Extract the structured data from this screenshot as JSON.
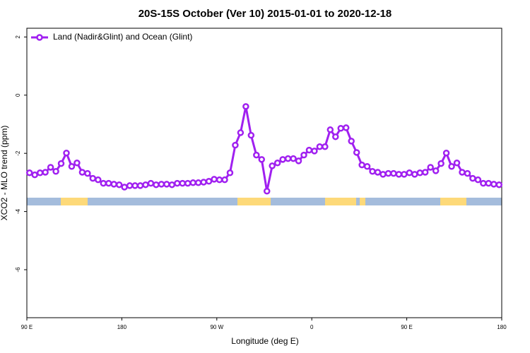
{
  "chart_data": {
    "type": "line",
    "title": "20S-15S October (Ver 10)   2015-01-01 to 2020-12-18",
    "x_label": "Longitude (deg E)",
    "y_label": "XCO2 - MLO trend (ppm)",
    "xlim": [
      90,
      540
    ],
    "ylim": [
      -7.65,
      2.3
    ],
    "xticks": [
      {
        "value": 90,
        "label": "90 E"
      },
      {
        "value": 180,
        "label": "180"
      },
      {
        "value": 270,
        "label": "90 W"
      },
      {
        "value": 360,
        "label": "0"
      },
      {
        "value": 450,
        "label": "90 E"
      },
      {
        "value": 540,
        "label": "180"
      }
    ],
    "yticks": [
      -6,
      -4,
      -2,
      0,
      2
    ],
    "legend": "top-left",
    "x": [
      92.5,
      97.5,
      102.5,
      107.5,
      112.5,
      117.5,
      122.5,
      127.5,
      132.5,
      137.5,
      142.5,
      147.5,
      152.5,
      157.5,
      162.5,
      167.5,
      172.5,
      177.5,
      182.5,
      187.5,
      192.5,
      197.5,
      202.5,
      207.5,
      212.5,
      217.5,
      222.5,
      227.5,
      232.5,
      237.5,
      242.5,
      247.5,
      252.5,
      257.5,
      262.5,
      267.5,
      272.5,
      277.5,
      282.5,
      287.5,
      292.5,
      297.5,
      302.5,
      307.5,
      312.5,
      317.5,
      322.5,
      327.5,
      332.5,
      337.5,
      342.5,
      347.5,
      352.5,
      357.5,
      362.5,
      367.5,
      372.5,
      377.5,
      382.5,
      387.5,
      392.5,
      397.5,
      402.5,
      407.5,
      412.5,
      417.5,
      422.5,
      427.5,
      432.5,
      437.5,
      442.5,
      447.5,
      452.5,
      457.5,
      462.5,
      467.5,
      472.5,
      477.5,
      482.5,
      487.5,
      492.5,
      497.5,
      502.5,
      507.5,
      512.5,
      517.5,
      522.5,
      527.5,
      532.5,
      537.5
    ],
    "series": [
      {
        "name": "Land (Nadir&Glint) and Ocean (Glint)",
        "color": "#a020f0",
        "values": [
          -2.67,
          -2.74,
          -2.67,
          -2.65,
          -2.48,
          -2.62,
          -2.35,
          -1.99,
          -2.45,
          -2.33,
          -2.65,
          -2.69,
          -2.86,
          -2.91,
          -3.03,
          -3.03,
          -3.06,
          -3.08,
          -3.16,
          -3.11,
          -3.11,
          -3.11,
          -3.08,
          -3.03,
          -3.08,
          -3.06,
          -3.06,
          -3.08,
          -3.03,
          -3.03,
          -3.03,
          -3.01,
          -3.01,
          -2.99,
          -2.96,
          -2.89,
          -2.91,
          -2.91,
          -2.67,
          -1.72,
          -1.29,
          -0.39,
          -1.38,
          -2.06,
          -2.21,
          -3.3,
          -2.43,
          -2.33,
          -2.21,
          -2.18,
          -2.18,
          -2.26,
          -2.06,
          -1.89,
          -1.92,
          -1.77,
          -1.77,
          -1.19,
          -1.43,
          -1.14,
          -1.12,
          -1.58,
          -1.97,
          -2.4,
          -2.45,
          -2.62,
          -2.65,
          -2.72,
          -2.69,
          -2.69,
          -2.72,
          -2.72,
          -2.67,
          -2.72,
          -2.67,
          -2.65,
          -2.48,
          -2.6,
          -2.35,
          -1.99,
          -2.45,
          -2.33,
          -2.65,
          -2.69,
          -2.86,
          -2.91,
          -3.03,
          -3.03,
          -3.06,
          -3.08
        ]
      }
    ]
  }
}
